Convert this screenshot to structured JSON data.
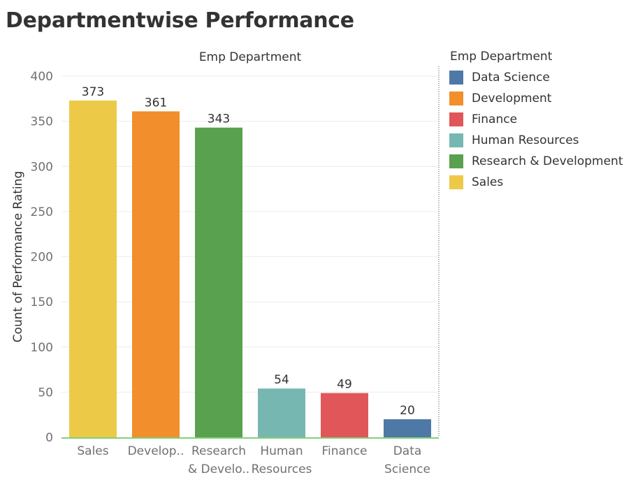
{
  "page": {
    "title": "Departmentwise Performance"
  },
  "legend": {
    "title": "Emp Department",
    "items": [
      {
        "label": "Data Science",
        "color": "#4e79a7"
      },
      {
        "label": "Development",
        "color": "#f28e2b"
      },
      {
        "label": "Finance",
        "color": "#e15759"
      },
      {
        "label": "Human Resources",
        "color": "#76b7b2"
      },
      {
        "label": "Research & Development",
        "color": "#59a14f"
      },
      {
        "label": "Sales",
        "color": "#edc948"
      }
    ]
  },
  "chart_data": {
    "type": "bar",
    "title": "Emp Department",
    "ylabel": "Count of Performance Rating",
    "xlabel": "",
    "ylim": [
      0,
      400
    ],
    "yticks": [
      0,
      50,
      100,
      150,
      200,
      250,
      300,
      350,
      400
    ],
    "grid": true,
    "legend_placement": "right",
    "categories": [
      "Sales",
      "Development",
      "Research & Development",
      "Human Resources",
      "Finance",
      "Data Science"
    ],
    "category_labels": [
      [
        "Sales"
      ],
      [
        "Develop.."
      ],
      [
        "Research",
        "& Develo.."
      ],
      [
        "Human",
        "Resources"
      ],
      [
        "Finance"
      ],
      [
        "Data",
        "Science"
      ]
    ],
    "values": [
      373,
      361,
      343,
      54,
      49,
      20
    ],
    "colors": [
      "#edc948",
      "#f28e2b",
      "#59a14f",
      "#76b7b2",
      "#e15759",
      "#4e79a7"
    ]
  }
}
